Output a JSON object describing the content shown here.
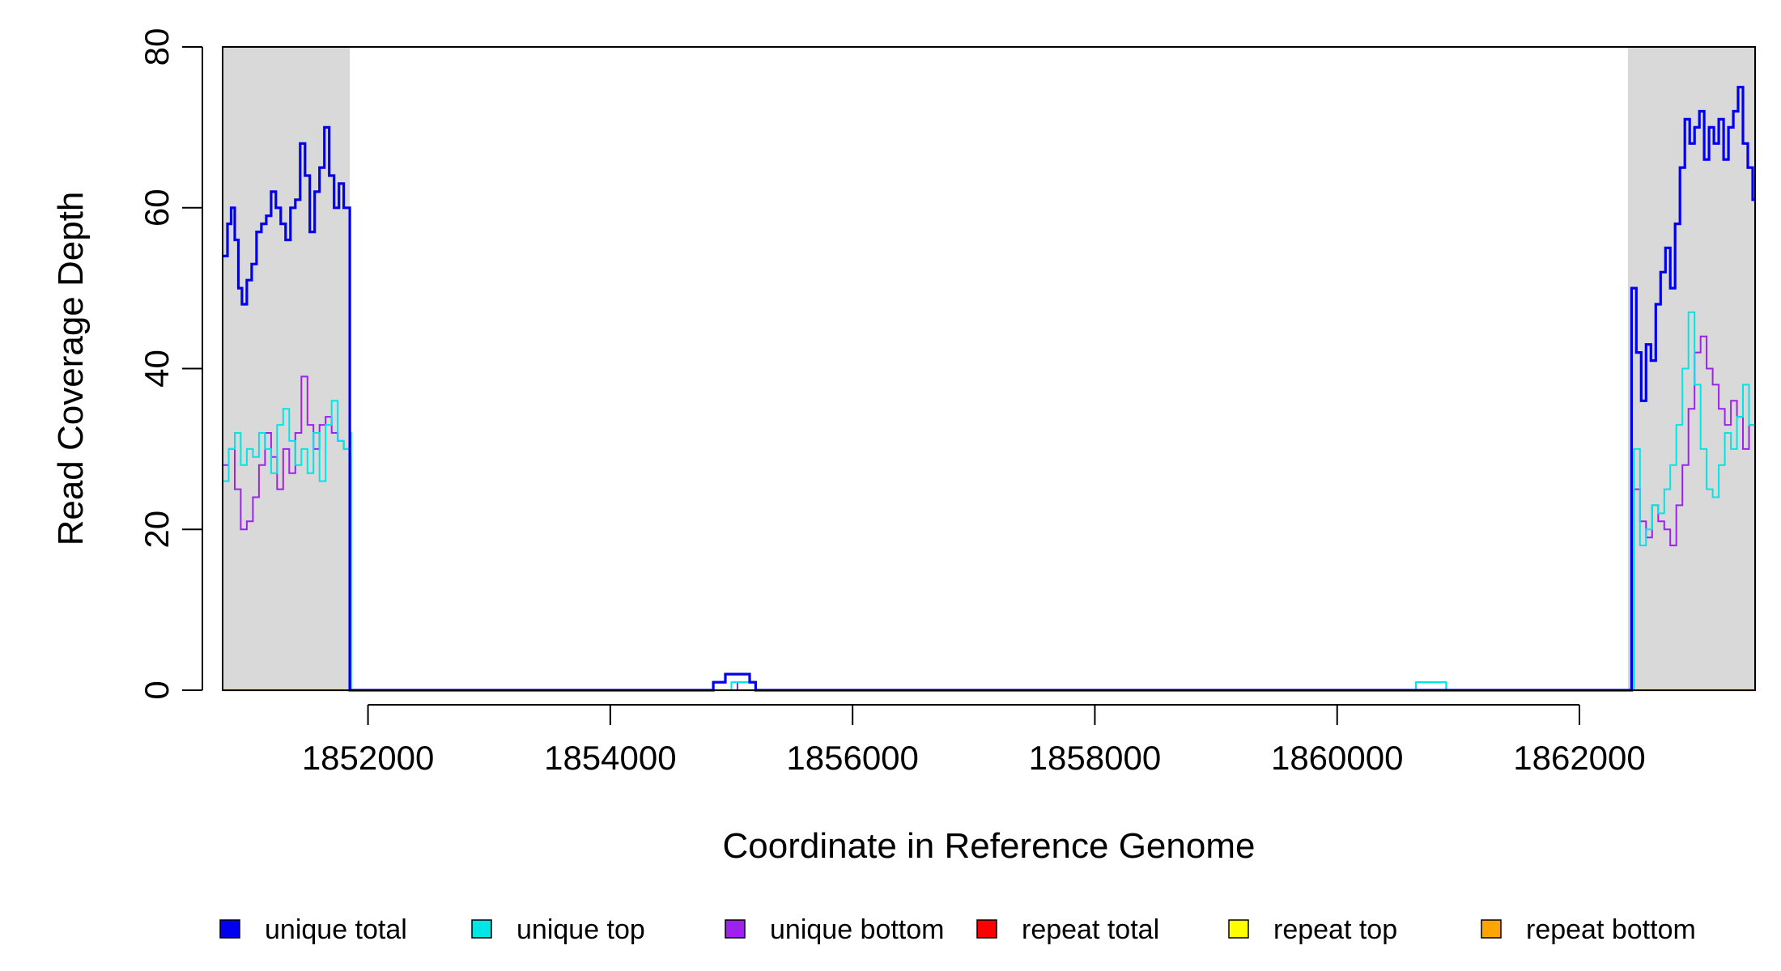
{
  "chart_data": {
    "type": "line",
    "title": "",
    "xlabel": "Coordinate in Reference Genome",
    "ylabel": "Read Coverage Depth",
    "xlim": [
      1850800,
      1863450
    ],
    "ylim": [
      0,
      80
    ],
    "x_ticks": [
      1852000,
      1854000,
      1856000,
      1858000,
      1860000,
      1862000
    ],
    "y_ticks": [
      0,
      20,
      40,
      60,
      80
    ],
    "grid": false,
    "legend_position": "bottom",
    "shaded_regions": [
      {
        "x_start": 1850800,
        "x_end": 1851850,
        "color": "#d9d9d9"
      },
      {
        "x_start": 1862400,
        "x_end": 1863450,
        "color": "#d9d9d9"
      }
    ],
    "series": [
      {
        "name": "unique total",
        "color": "#0000ee",
        "line_width": 3.2,
        "x": [
          1850800,
          1850840,
          1850870,
          1850900,
          1850930,
          1850960,
          1851000,
          1851040,
          1851080,
          1851120,
          1851160,
          1851200,
          1851240,
          1851280,
          1851320,
          1851360,
          1851400,
          1851440,
          1851480,
          1851520,
          1851560,
          1851600,
          1851640,
          1851680,
          1851720,
          1851760,
          1851800,
          1851830,
          1851850,
          1851860,
          1854850,
          1854950,
          1855150,
          1855200,
          1860650,
          1860900,
          1862400,
          1862430,
          1862470,
          1862510,
          1862550,
          1862590,
          1862630,
          1862670,
          1862710,
          1862750,
          1862790,
          1862830,
          1862870,
          1862910,
          1862950,
          1862990,
          1863030,
          1863070,
          1863110,
          1863150,
          1863190,
          1863230,
          1863270,
          1863310,
          1863350,
          1863390,
          1863430,
          1863450
        ],
        "y": [
          54,
          58,
          60,
          56,
          50,
          48,
          51,
          53,
          57,
          58,
          59,
          62,
          60,
          58,
          56,
          60,
          61,
          68,
          64,
          57,
          62,
          65,
          70,
          64,
          60,
          63,
          60,
          60,
          0,
          0,
          1,
          2,
          1,
          0,
          0,
          0,
          0,
          50,
          42,
          36,
          43,
          41,
          48,
          52,
          55,
          50,
          58,
          65,
          71,
          68,
          70,
          72,
          66,
          70,
          68,
          71,
          66,
          70,
          72,
          75,
          68,
          65,
          61,
          61
        ]
      },
      {
        "name": "unique top",
        "color": "#00e5e5",
        "line_width": 2,
        "x": [
          1850800,
          1850850,
          1850900,
          1850950,
          1851000,
          1851050,
          1851100,
          1851150,
          1851200,
          1851250,
          1851300,
          1851350,
          1851400,
          1851450,
          1851500,
          1851550,
          1851600,
          1851650,
          1851700,
          1851750,
          1851800,
          1851850,
          1851860,
          1854900,
          1855000,
          1855200,
          1860650,
          1860900,
          1862400,
          1862450,
          1862500,
          1862550,
          1862600,
          1862650,
          1862700,
          1862750,
          1862800,
          1862850,
          1862900,
          1862950,
          1863000,
          1863050,
          1863100,
          1863150,
          1863200,
          1863250,
          1863300,
          1863350,
          1863400,
          1863450
        ],
        "y": [
          26,
          30,
          32,
          28,
          30,
          29,
          32,
          30,
          27,
          33,
          35,
          31,
          28,
          30,
          27,
          32,
          26,
          33,
          36,
          31,
          30,
          32,
          0,
          0,
          1,
          0,
          1,
          0,
          0,
          30,
          18,
          20,
          23,
          22,
          25,
          28,
          33,
          40,
          47,
          38,
          30,
          25,
          24,
          28,
          32,
          30,
          34,
          38,
          33,
          30
        ]
      },
      {
        "name": "unique bottom",
        "color": "#a020f0",
        "line_width": 2,
        "x": [
          1850800,
          1850850,
          1850900,
          1850950,
          1851000,
          1851050,
          1851100,
          1851150,
          1851200,
          1851250,
          1851300,
          1851350,
          1851400,
          1851450,
          1851500,
          1851550,
          1851600,
          1851650,
          1851700,
          1851750,
          1851800,
          1851850,
          1851860,
          1854900,
          1855050,
          1855200,
          1860650,
          1860900,
          1862400,
          1862450,
          1862500,
          1862550,
          1862600,
          1862650,
          1862700,
          1862750,
          1862800,
          1862850,
          1862900,
          1862950,
          1863000,
          1863050,
          1863100,
          1863150,
          1863200,
          1863250,
          1863300,
          1863350,
          1863400,
          1863450
        ],
        "y": [
          28,
          30,
          25,
          20,
          21,
          24,
          28,
          32,
          29,
          25,
          30,
          27,
          32,
          39,
          33,
          30,
          33,
          34,
          32,
          31,
          30,
          29,
          0,
          0,
          1,
          0,
          1,
          0,
          0,
          25,
          21,
          19,
          23,
          21,
          20,
          18,
          23,
          28,
          35,
          42,
          44,
          40,
          38,
          35,
          33,
          36,
          34,
          30,
          33,
          30
        ]
      },
      {
        "name": "repeat total",
        "color": "#ff0000",
        "line_width": 2,
        "x": [
          1850800,
          1863450
        ],
        "y": [
          0,
          0
        ]
      },
      {
        "name": "repeat top",
        "color": "#ffff00",
        "line_width": 2,
        "x": [
          1850800,
          1863450
        ],
        "y": [
          0,
          0
        ]
      },
      {
        "name": "repeat bottom",
        "color": "#ffa500",
        "line_width": 2.5,
        "x": [
          1850800,
          1863450
        ],
        "y": [
          0,
          0
        ]
      }
    ]
  }
}
